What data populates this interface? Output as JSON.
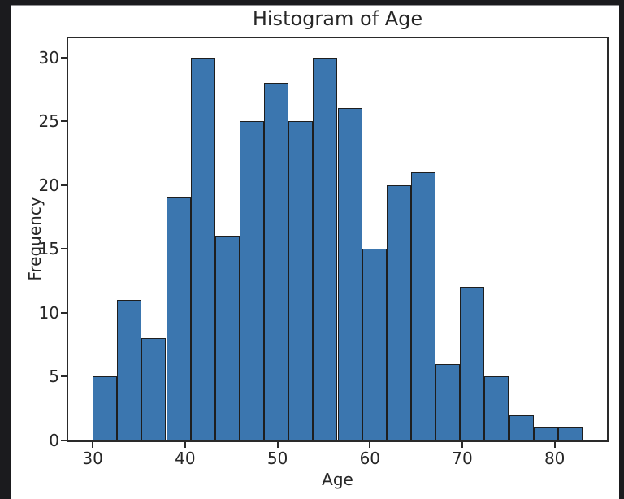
{
  "chart_data": {
    "type": "bar",
    "subtype": "histogram",
    "title": "Histogram of Age",
    "xlabel": "Age",
    "ylabel": "Frequency",
    "bin_edges": [
      30.0,
      32.65,
      35.3,
      37.95,
      40.6,
      43.25,
      45.9,
      48.55,
      51.2,
      53.85,
      56.5,
      59.15,
      61.8,
      64.45,
      67.1,
      69.75,
      72.4,
      75.05,
      77.7,
      80.35,
      83.0
    ],
    "counts": [
      5,
      11,
      8,
      19,
      30,
      16,
      25,
      28,
      25,
      30,
      26,
      15,
      20,
      21,
      6,
      12,
      5,
      2,
      1,
      1
    ],
    "xlim": [
      27.35,
      85.65
    ],
    "ylim": [
      0,
      31.5
    ],
    "xticks": [
      30,
      40,
      50,
      60,
      70,
      80
    ],
    "yticks": [
      0,
      5,
      10,
      15,
      20,
      25,
      30
    ],
    "grid": false,
    "legend": "none",
    "bar_color": "#3b76af",
    "bar_edge_color": "#1e1e1e",
    "background_color": "#ffffff",
    "outer_background_color": "#1b1b1e",
    "text_color": "#262626"
  }
}
